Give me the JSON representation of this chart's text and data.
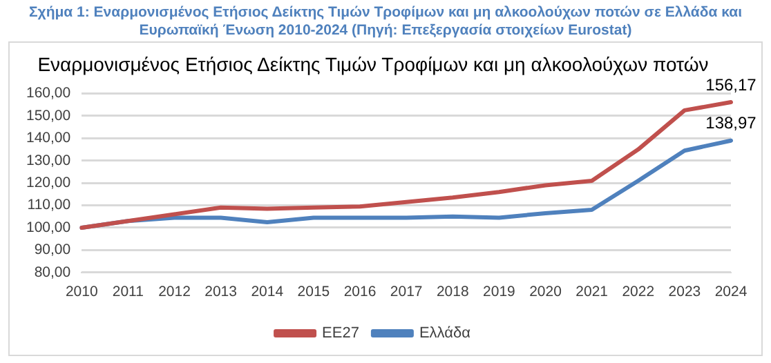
{
  "chart_data": {
    "type": "line",
    "title": "Σχήμα 1: Εναρμονισμένος Ετήσιος Δείκτης Τιμών Τροφίμων και μη αλκοολούχων ποτών σε Ελλάδα και Ευρωπαϊκή Ένωση 2010-2024 (Πηγή: Επεξεργασία στοιχείων Eurostat)",
    "subtitle": "Εναρμονισμένος Ετήσιος Δείκτης Τιμών Τροφίμων και μη αλκοολούχων ποτών",
    "categories": [
      "2010",
      "2011",
      "2012",
      "2013",
      "2014",
      "2015",
      "2016",
      "2017",
      "2018",
      "2019",
      "2020",
      "2021",
      "2022",
      "2023",
      "2024"
    ],
    "series": [
      {
        "name": "ΕΕ27",
        "color": "#c0504d",
        "values": [
          100,
          103,
          106,
          109,
          108.5,
          109,
          109.5,
          111.5,
          113.5,
          116,
          119,
          121,
          135,
          152.5,
          156.17
        ],
        "value_labels": [
          null,
          null,
          null,
          null,
          null,
          null,
          null,
          null,
          null,
          null,
          null,
          null,
          null,
          null,
          "156,17"
        ]
      },
      {
        "name": "Ελλάδα",
        "color": "#4f81bd",
        "values": [
          100,
          103,
          104.5,
          104.5,
          102.5,
          104.5,
          104.5,
          104.5,
          105,
          104.5,
          106.5,
          108,
          121,
          134.5,
          138.97
        ],
        "value_labels": [
          null,
          null,
          null,
          null,
          null,
          null,
          null,
          null,
          null,
          null,
          null,
          null,
          null,
          null,
          "138,97"
        ]
      }
    ],
    "ylim": [
      80,
      160
    ],
    "yticks": [
      {
        "value": 80,
        "label": "80,00"
      },
      {
        "value": 90,
        "label": "90,00"
      },
      {
        "value": 100,
        "label": "100,00"
      },
      {
        "value": 110,
        "label": "110,00"
      },
      {
        "value": 120,
        "label": "120,00"
      },
      {
        "value": 130,
        "label": "130,00"
      },
      {
        "value": 140,
        "label": "140,00"
      },
      {
        "value": 150,
        "label": "150,00"
      },
      {
        "value": 160,
        "label": "160,00"
      }
    ],
    "grid": "y",
    "legend": "bottom",
    "marker": "none",
    "line_style": "solid"
  }
}
